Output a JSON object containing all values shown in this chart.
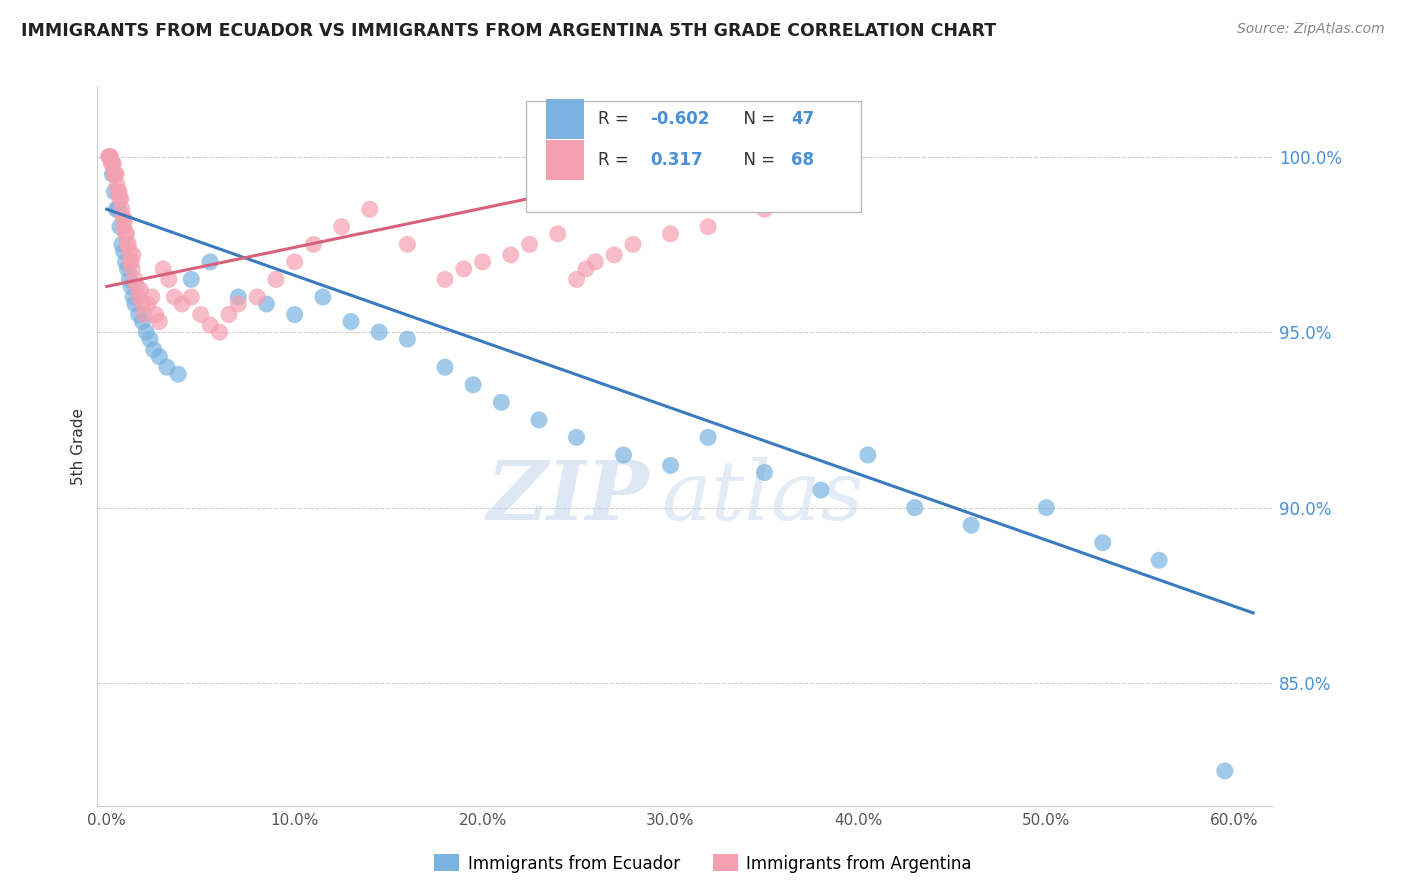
{
  "title": "IMMIGRANTS FROM ECUADOR VS IMMIGRANTS FROM ARGENTINA 5TH GRADE CORRELATION CHART",
  "source": "Source: ZipAtlas.com",
  "ylabel": "5th Grade",
  "xlabel_ticks": [
    "0.0%",
    "10.0%",
    "20.0%",
    "30.0%",
    "40.0%",
    "50.0%",
    "60.0%"
  ],
  "xlabel_vals": [
    0.0,
    10.0,
    20.0,
    30.0,
    40.0,
    50.0,
    60.0
  ],
  "ylim": [
    81.5,
    102.0
  ],
  "xlim": [
    -0.5,
    62.0
  ],
  "ytick_vals": [
    85.0,
    90.0,
    95.0,
    100.0
  ],
  "ytick_labels": [
    "85.0%",
    "90.0%",
    "95.0%",
    "100.0%"
  ],
  "ecuador_color": "#7ab3e0",
  "argentina_color": "#f4a0b0",
  "ecuador_line_color": "#3a7abf",
  "argentina_line_color": "#d9607a",
  "ecuador_R": -0.602,
  "ecuador_N": 47,
  "argentina_R": 0.317,
  "argentina_N": 68,
  "watermark_zip": "ZIP",
  "watermark_atlas": "atlas",
  "legend_ecuador": "Immigrants from Ecuador",
  "legend_argentina": "Immigrants from Argentina",
  "ecuador_x": [
    0.3,
    0.4,
    0.5,
    0.6,
    0.7,
    0.8,
    0.9,
    1.0,
    1.1,
    1.2,
    1.3,
    1.4,
    1.5,
    1.7,
    1.9,
    2.1,
    2.3,
    2.5,
    2.8,
    3.2,
    3.8,
    4.5,
    5.5,
    7.0,
    8.5,
    10.0,
    11.5,
    13.0,
    14.5,
    16.0,
    18.0,
    19.5,
    21.0,
    23.0,
    25.0,
    27.5,
    30.0,
    32.0,
    35.0,
    38.0,
    40.5,
    43.0,
    46.0,
    50.0,
    53.0,
    56.0,
    59.5
  ],
  "ecuador_y": [
    99.5,
    99.0,
    98.5,
    98.5,
    98.0,
    97.5,
    97.3,
    97.0,
    96.8,
    96.5,
    96.3,
    96.0,
    95.8,
    95.5,
    95.3,
    95.0,
    94.8,
    94.5,
    94.3,
    94.0,
    93.8,
    96.5,
    97.0,
    96.0,
    95.8,
    95.5,
    96.0,
    95.3,
    95.0,
    94.8,
    94.0,
    93.5,
    93.0,
    92.5,
    92.0,
    91.5,
    91.2,
    92.0,
    91.0,
    90.5,
    91.5,
    90.0,
    89.5,
    90.0,
    89.0,
    88.5,
    82.5
  ],
  "argentina_x": [
    0.1,
    0.15,
    0.2,
    0.25,
    0.3,
    0.35,
    0.4,
    0.45,
    0.5,
    0.55,
    0.6,
    0.65,
    0.7,
    0.75,
    0.8,
    0.85,
    0.9,
    0.95,
    1.0,
    1.05,
    1.1,
    1.15,
    1.2,
    1.25,
    1.3,
    1.35,
    1.4,
    1.5,
    1.6,
    1.7,
    1.8,
    1.9,
    2.0,
    2.2,
    2.4,
    2.6,
    2.8,
    3.0,
    3.3,
    3.6,
    4.0,
    4.5,
    5.0,
    5.5,
    6.0,
    6.5,
    7.0,
    8.0,
    9.0,
    10.0,
    11.0,
    12.5,
    14.0,
    16.0,
    18.0,
    19.0,
    20.0,
    21.5,
    22.5,
    24.0,
    25.0,
    25.5,
    26.0,
    27.0,
    28.0,
    30.0,
    32.0,
    35.0
  ],
  "argentina_y": [
    100.0,
    100.0,
    100.0,
    99.8,
    99.8,
    99.8,
    99.5,
    99.5,
    99.5,
    99.2,
    99.0,
    99.0,
    98.8,
    98.8,
    98.5,
    98.3,
    98.0,
    98.2,
    97.8,
    97.8,
    97.5,
    97.5,
    97.3,
    97.0,
    97.0,
    96.8,
    97.2,
    96.5,
    96.3,
    96.0,
    96.2,
    95.8,
    95.5,
    95.8,
    96.0,
    95.5,
    95.3,
    96.8,
    96.5,
    96.0,
    95.8,
    96.0,
    95.5,
    95.2,
    95.0,
    95.5,
    95.8,
    96.0,
    96.5,
    97.0,
    97.5,
    98.0,
    98.5,
    97.5,
    96.5,
    96.8,
    97.0,
    97.2,
    97.5,
    97.8,
    96.5,
    96.8,
    97.0,
    97.2,
    97.5,
    97.8,
    98.0,
    98.5
  ]
}
